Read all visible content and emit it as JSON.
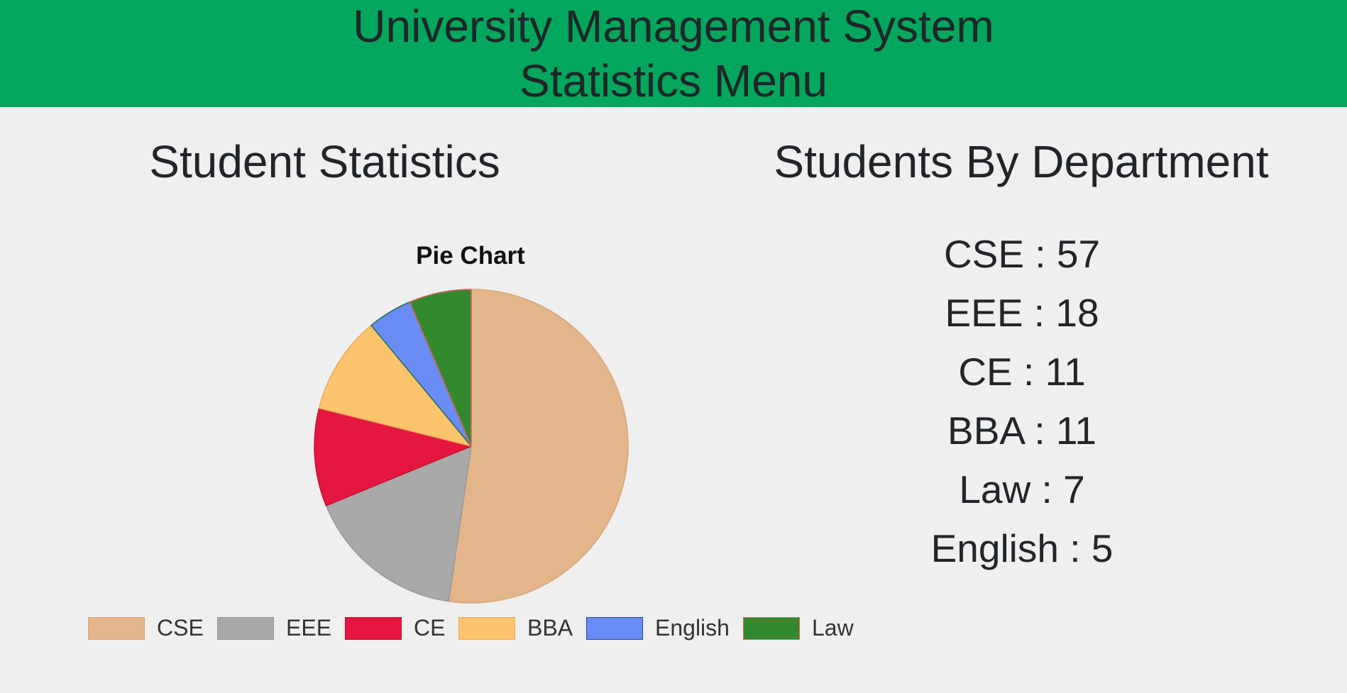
{
  "header": {
    "title": "University Management System",
    "subtitle": "Statistics Menu",
    "background": "#02a65c"
  },
  "left_section": {
    "title": "Student Statistics"
  },
  "right_section": {
    "title": "Students By Department",
    "rows": [
      {
        "label": "CSE : 57"
      },
      {
        "label": "EEE : 18"
      },
      {
        "label": "CE : 11"
      },
      {
        "label": "BBA : 11"
      },
      {
        "label": "Law : 7"
      },
      {
        "label": "English : 5"
      }
    ]
  },
  "chart_data": {
    "type": "pie",
    "title": "Pie Chart",
    "legend_position": "bottom",
    "start_angle": "top, clockwise",
    "slices": [
      {
        "label": "CSE",
        "value": 57,
        "color": "#e2b68a",
        "stroke": "#d9a57a"
      },
      {
        "label": "EEE",
        "value": 18,
        "color": "#a9a9a9",
        "stroke": "#999999"
      },
      {
        "label": "CE",
        "value": 11,
        "color": "#e5163f",
        "stroke": "#c8102e"
      },
      {
        "label": "BBA",
        "value": 11,
        "color": "#fcc46c",
        "stroke": "#e8a85a"
      },
      {
        "label": "English",
        "value": 5,
        "color": "#6a8cf7",
        "stroke": "#1f6f4a"
      },
      {
        "label": "Law",
        "value": 7,
        "color": "#338a2e",
        "stroke": "#e06060"
      }
    ],
    "legend": [
      {
        "label": "CSE",
        "color": "#e2b68a",
        "stroke": "#d9a57a"
      },
      {
        "label": "EEE",
        "color": "#a9a9a9",
        "stroke": "#999999"
      },
      {
        "label": "CE",
        "color": "#e5163f",
        "stroke": "#c8102e"
      },
      {
        "label": "BBA",
        "color": "#fcc46c",
        "stroke": "#e8a85a"
      },
      {
        "label": "English",
        "color": "#6a8cf7",
        "stroke": "#1f4fa0"
      },
      {
        "label": "Law",
        "color": "#338a2e",
        "stroke": "#e06060"
      }
    ]
  }
}
